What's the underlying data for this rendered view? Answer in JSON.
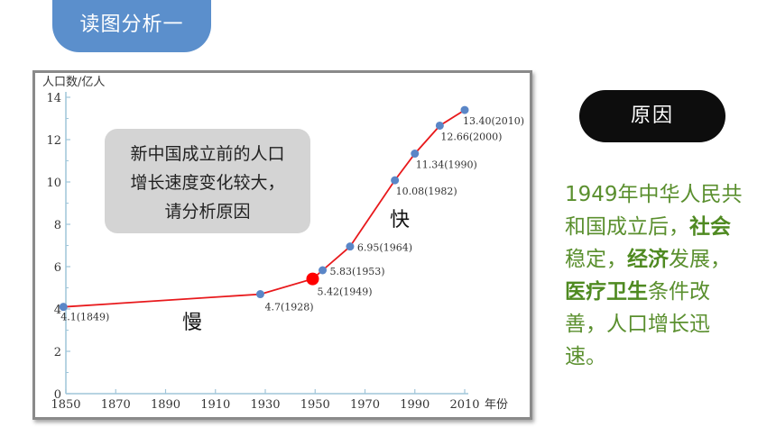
{
  "header": {
    "title": "读图分析一"
  },
  "note": {
    "lines": [
      "新中国成立前的人口",
      "增长速度变化较大，",
      "请分析原因"
    ]
  },
  "annotations": {
    "fast": "快",
    "slow": "慢"
  },
  "reason": {
    "label": "原因",
    "text": {
      "p1": "1949年中华人民共和国成立后，",
      "b1": "社会",
      "p2": "稳定，",
      "b2": "经济",
      "p3": "发展，",
      "b3": "医疗卫生",
      "p4": "条件改善，人口增长迅速。"
    }
  },
  "colors": {
    "line": "#e8191c",
    "point": "#5a86c7",
    "highlight": "#ff0000",
    "reason_text": "#5a8f2e",
    "title_tab": "#5b8fcc"
  },
  "chart_data": {
    "type": "line",
    "ylabel": "人口数/亿人",
    "xlabel": "年份",
    "xlim": [
      1850,
      2010
    ],
    "ylim": [
      0,
      14
    ],
    "xticks": [
      1850,
      1870,
      1890,
      1910,
      1930,
      1950,
      1970,
      1990,
      2010
    ],
    "yticks": [
      0,
      2,
      4,
      6,
      8,
      10,
      12,
      14
    ],
    "series": [
      {
        "points": [
          {
            "x": 1849,
            "y": 4.1,
            "label": "4.1(1849)"
          },
          {
            "x": 1928,
            "y": 4.7,
            "label": "4.7(1928)"
          },
          {
            "x": 1949,
            "y": 5.42,
            "label": "5.42(1949)",
            "highlight": true
          },
          {
            "x": 1953,
            "y": 5.83,
            "label": "5.83(1953)"
          },
          {
            "x": 1964,
            "y": 6.95,
            "label": "6.95(1964)"
          },
          {
            "x": 1982,
            "y": 10.08,
            "label": "10.08(1982)"
          },
          {
            "x": 1990,
            "y": 11.34,
            "label": "11.34(1990)"
          },
          {
            "x": 2000,
            "y": 12.66,
            "label": "12.66(2000)"
          },
          {
            "x": 2010,
            "y": 13.4,
            "label": "13.40(2010)"
          }
        ]
      }
    ]
  }
}
